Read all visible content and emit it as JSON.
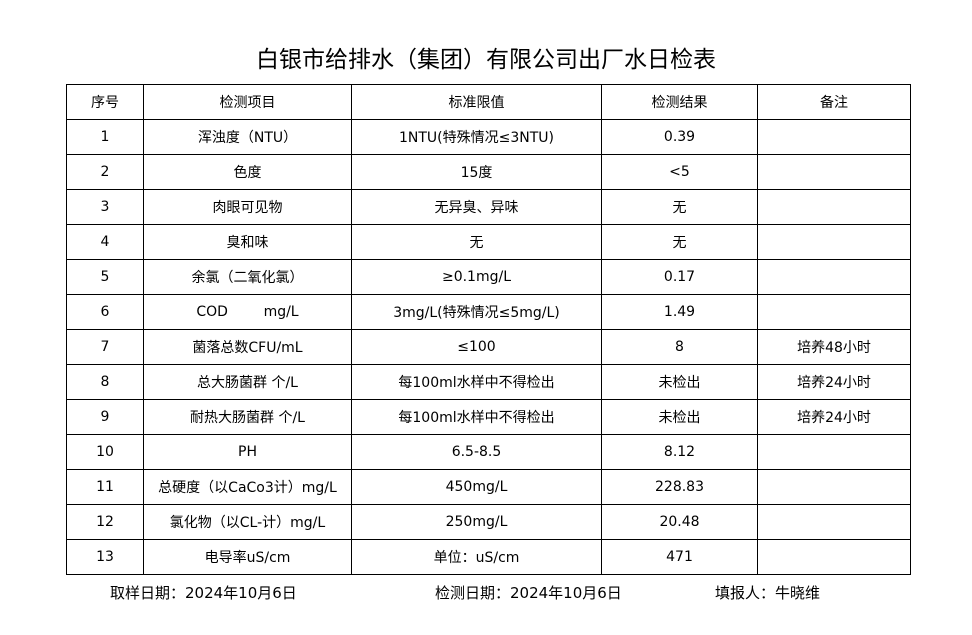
{
  "title": "白银市给排水（集团）有限公司出厂水日检表",
  "table": {
    "header": [
      "序号",
      "检测项目",
      "标准限值",
      "检测结果",
      "备注"
    ],
    "rows": [
      [
        "1",
        "浑浊度（NTU）",
        "1NTU(特殊情况≤3NTU)",
        "0.39",
        ""
      ],
      [
        "2",
        "色度",
        "15度",
        "<5",
        ""
      ],
      [
        "3",
        "肉眼可见物",
        "无异臭、异味",
        "无",
        ""
      ],
      [
        "4",
        "臭和味",
        "无",
        "无",
        ""
      ],
      [
        "5",
        "余氯（二氧化氯）",
        "≥0.1mg/L",
        "0.17",
        ""
      ],
      [
        "6",
        "COD        mg/L",
        "3mg/L(特殊情况≤5mg/L)",
        "1.49",
        ""
      ],
      [
        "7",
        "菌落总数CFU/mL",
        "≤100",
        "8",
        "培养48小时"
      ],
      [
        "8",
        "总大肠菌群 个/L",
        "每100ml水样中不得检出",
        "未检出",
        "培养24小时"
      ],
      [
        "9",
        "耐热大肠菌群 个/L",
        "每100ml水样中不得检出",
        "未检出",
        "培养24小时"
      ],
      [
        "10",
        "PH",
        "6.5-8.5",
        "8.12",
        ""
      ],
      [
        "11",
        "总硬度（以CaCo3计）mg/L",
        "450mg/L",
        "228.83",
        ""
      ],
      [
        "12",
        "氯化物（以CL-计）mg/L",
        "250mg/L",
        "20.48",
        ""
      ],
      [
        "13",
        "电导率uS/cm",
        "单位：uS/cm",
        "471",
        ""
      ]
    ]
  },
  "footer": [
    "取样日期：2024年10月6日",
    "检测日期：2024年10月6日",
    "填报人：牛晓维"
  ]
}
